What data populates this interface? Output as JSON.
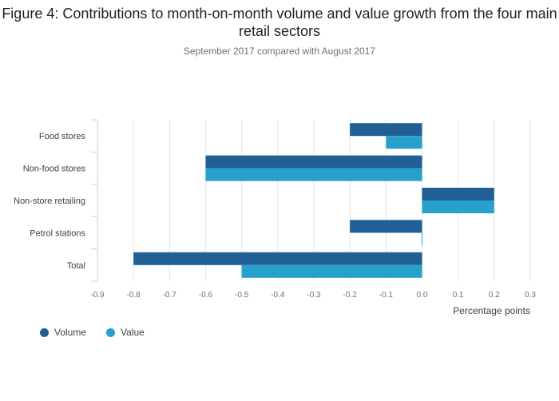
{
  "chart_data": {
    "type": "bar",
    "orientation": "horizontal",
    "title": "Figure 4: Contributions to month-on-month volume and value growth from the four main retail sectors",
    "subtitle": "September 2017 compared with August 2017",
    "xlabel": "Percentage points",
    "ylabel": "",
    "categories": [
      "Food stores",
      "Non-food stores",
      "Non-store retailing",
      "Petrol stations",
      "Total"
    ],
    "series": [
      {
        "name": "Volume",
        "color": "#206095",
        "values": [
          -0.2,
          -0.6,
          0.2,
          -0.2,
          -0.8
        ]
      },
      {
        "name": "Value",
        "color": "#27a0cc",
        "values": [
          -0.1,
          -0.6,
          0.2,
          0.0,
          -0.5
        ]
      }
    ],
    "xlim": [
      -0.9,
      0.3
    ],
    "xticks": [
      "-0.9",
      "-0.8",
      "-0.7",
      "-0.6",
      "-0.5",
      "-0.4",
      "-0.3",
      "-0.2",
      "-0.1",
      "0.0",
      "0.1",
      "0.2",
      "0.3"
    ],
    "grid": true,
    "legend_position": "bottom-left"
  }
}
